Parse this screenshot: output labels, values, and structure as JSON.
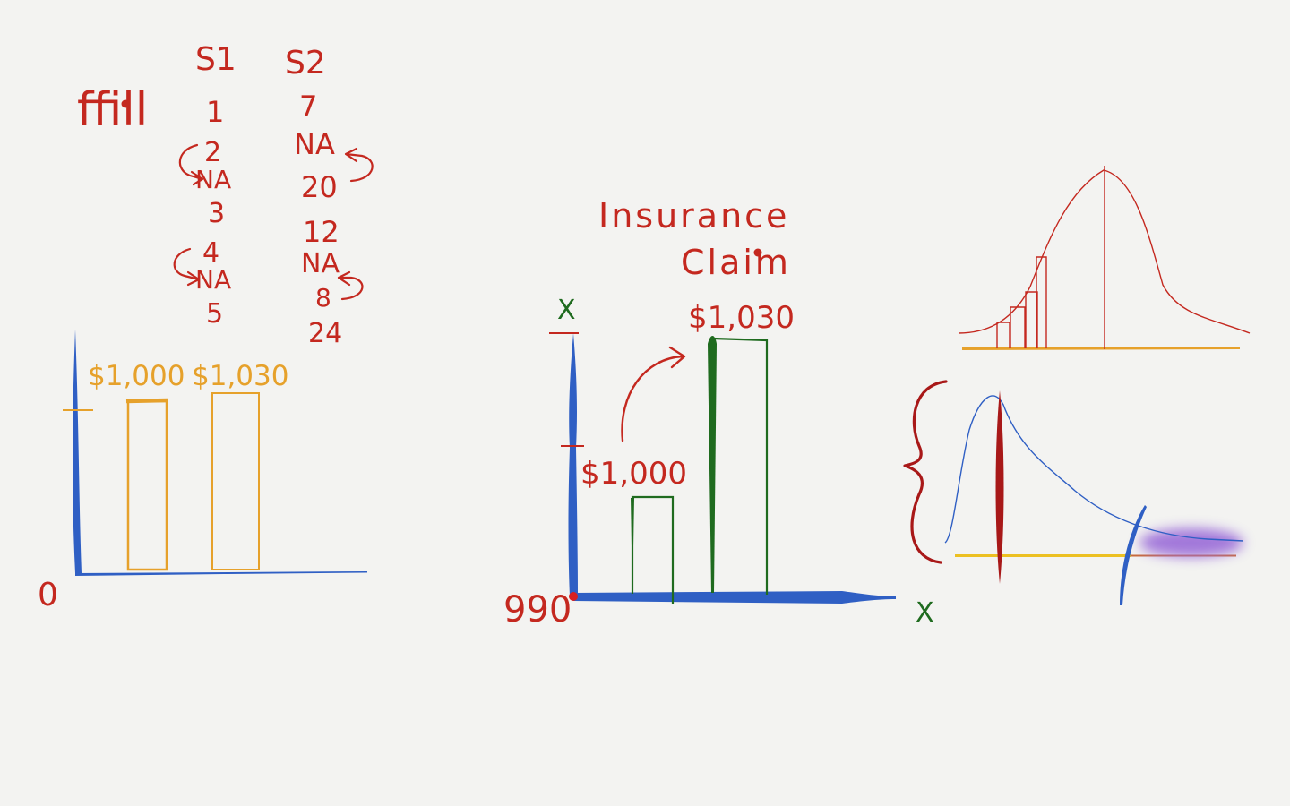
{
  "palette": {
    "paper": "#f3f3f1",
    "red_ink": "#c4281f",
    "blue_ink": "#2f5fc4",
    "orange_ink": "#e6a12b",
    "green_ink": "#1f6b1f",
    "purple_ink": "#9a6ad8",
    "yellow_ink": "#ecc022"
  },
  "ffill_table": {
    "label": "ffill",
    "headers": [
      "S1",
      "S2"
    ],
    "s1_values": [
      "1",
      "2",
      "NA",
      "3",
      "4",
      "NA",
      "5"
    ],
    "s2_values": [
      "7",
      "NA",
      "20",
      "12",
      "NA",
      "8",
      "24"
    ]
  },
  "left_chart": {
    "zero_label": "0",
    "bar_labels": [
      "$1,000",
      "$1,030"
    ]
  },
  "middle_chart": {
    "title_line1": "Insurance",
    "title_line2": "Claim",
    "y_axis_mark": "X",
    "x_axis_mark": "X",
    "origin_label": "990",
    "bar_labels": [
      "$1,000",
      "$1,030"
    ]
  }
}
